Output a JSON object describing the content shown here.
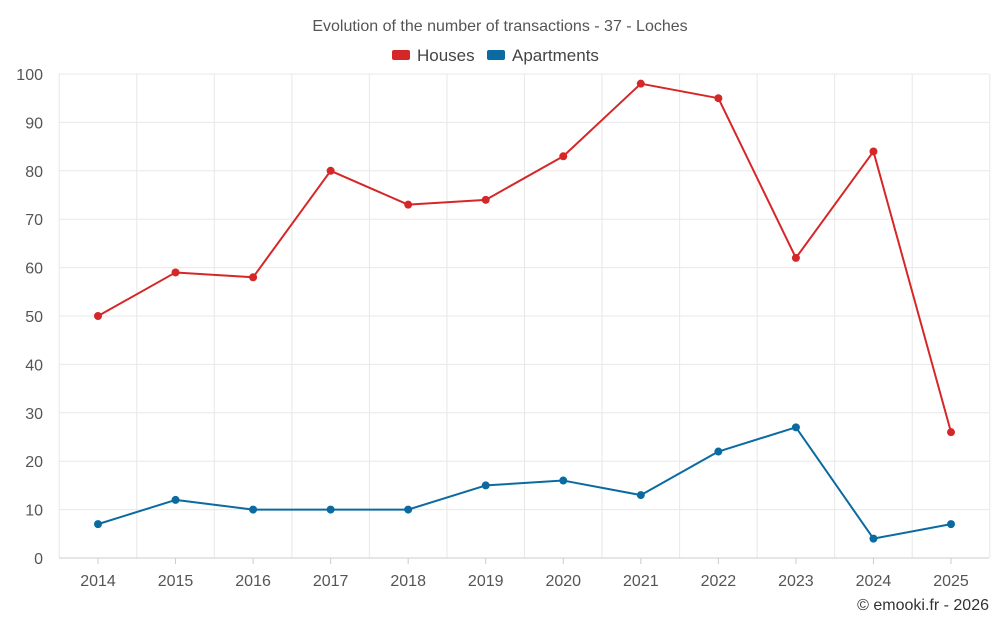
{
  "chart_data": {
    "type": "line",
    "title": "Evolution of the number of transactions - 37 - Loches",
    "categories": [
      "2014",
      "2015",
      "2016",
      "2017",
      "2018",
      "2019",
      "2020",
      "2021",
      "2022",
      "2023",
      "2024",
      "2025"
    ],
    "series": [
      {
        "name": "Houses",
        "color": "#d62728",
        "values": [
          50,
          59,
          58,
          80,
          73,
          74,
          83,
          98,
          95,
          62,
          84,
          26
        ]
      },
      {
        "name": "Apartments",
        "color": "#0b6aa0",
        "values": [
          7,
          12,
          10,
          10,
          10,
          15,
          16,
          13,
          22,
          27,
          4,
          7
        ]
      }
    ],
    "xlabel": "",
    "ylabel": "",
    "ylim": [
      0,
      100
    ],
    "yticks": [
      0,
      10,
      20,
      30,
      40,
      50,
      60,
      70,
      80,
      90,
      100
    ],
    "grid": true,
    "legend": "top-center"
  },
  "credit": "© emooki.fr - 2026"
}
